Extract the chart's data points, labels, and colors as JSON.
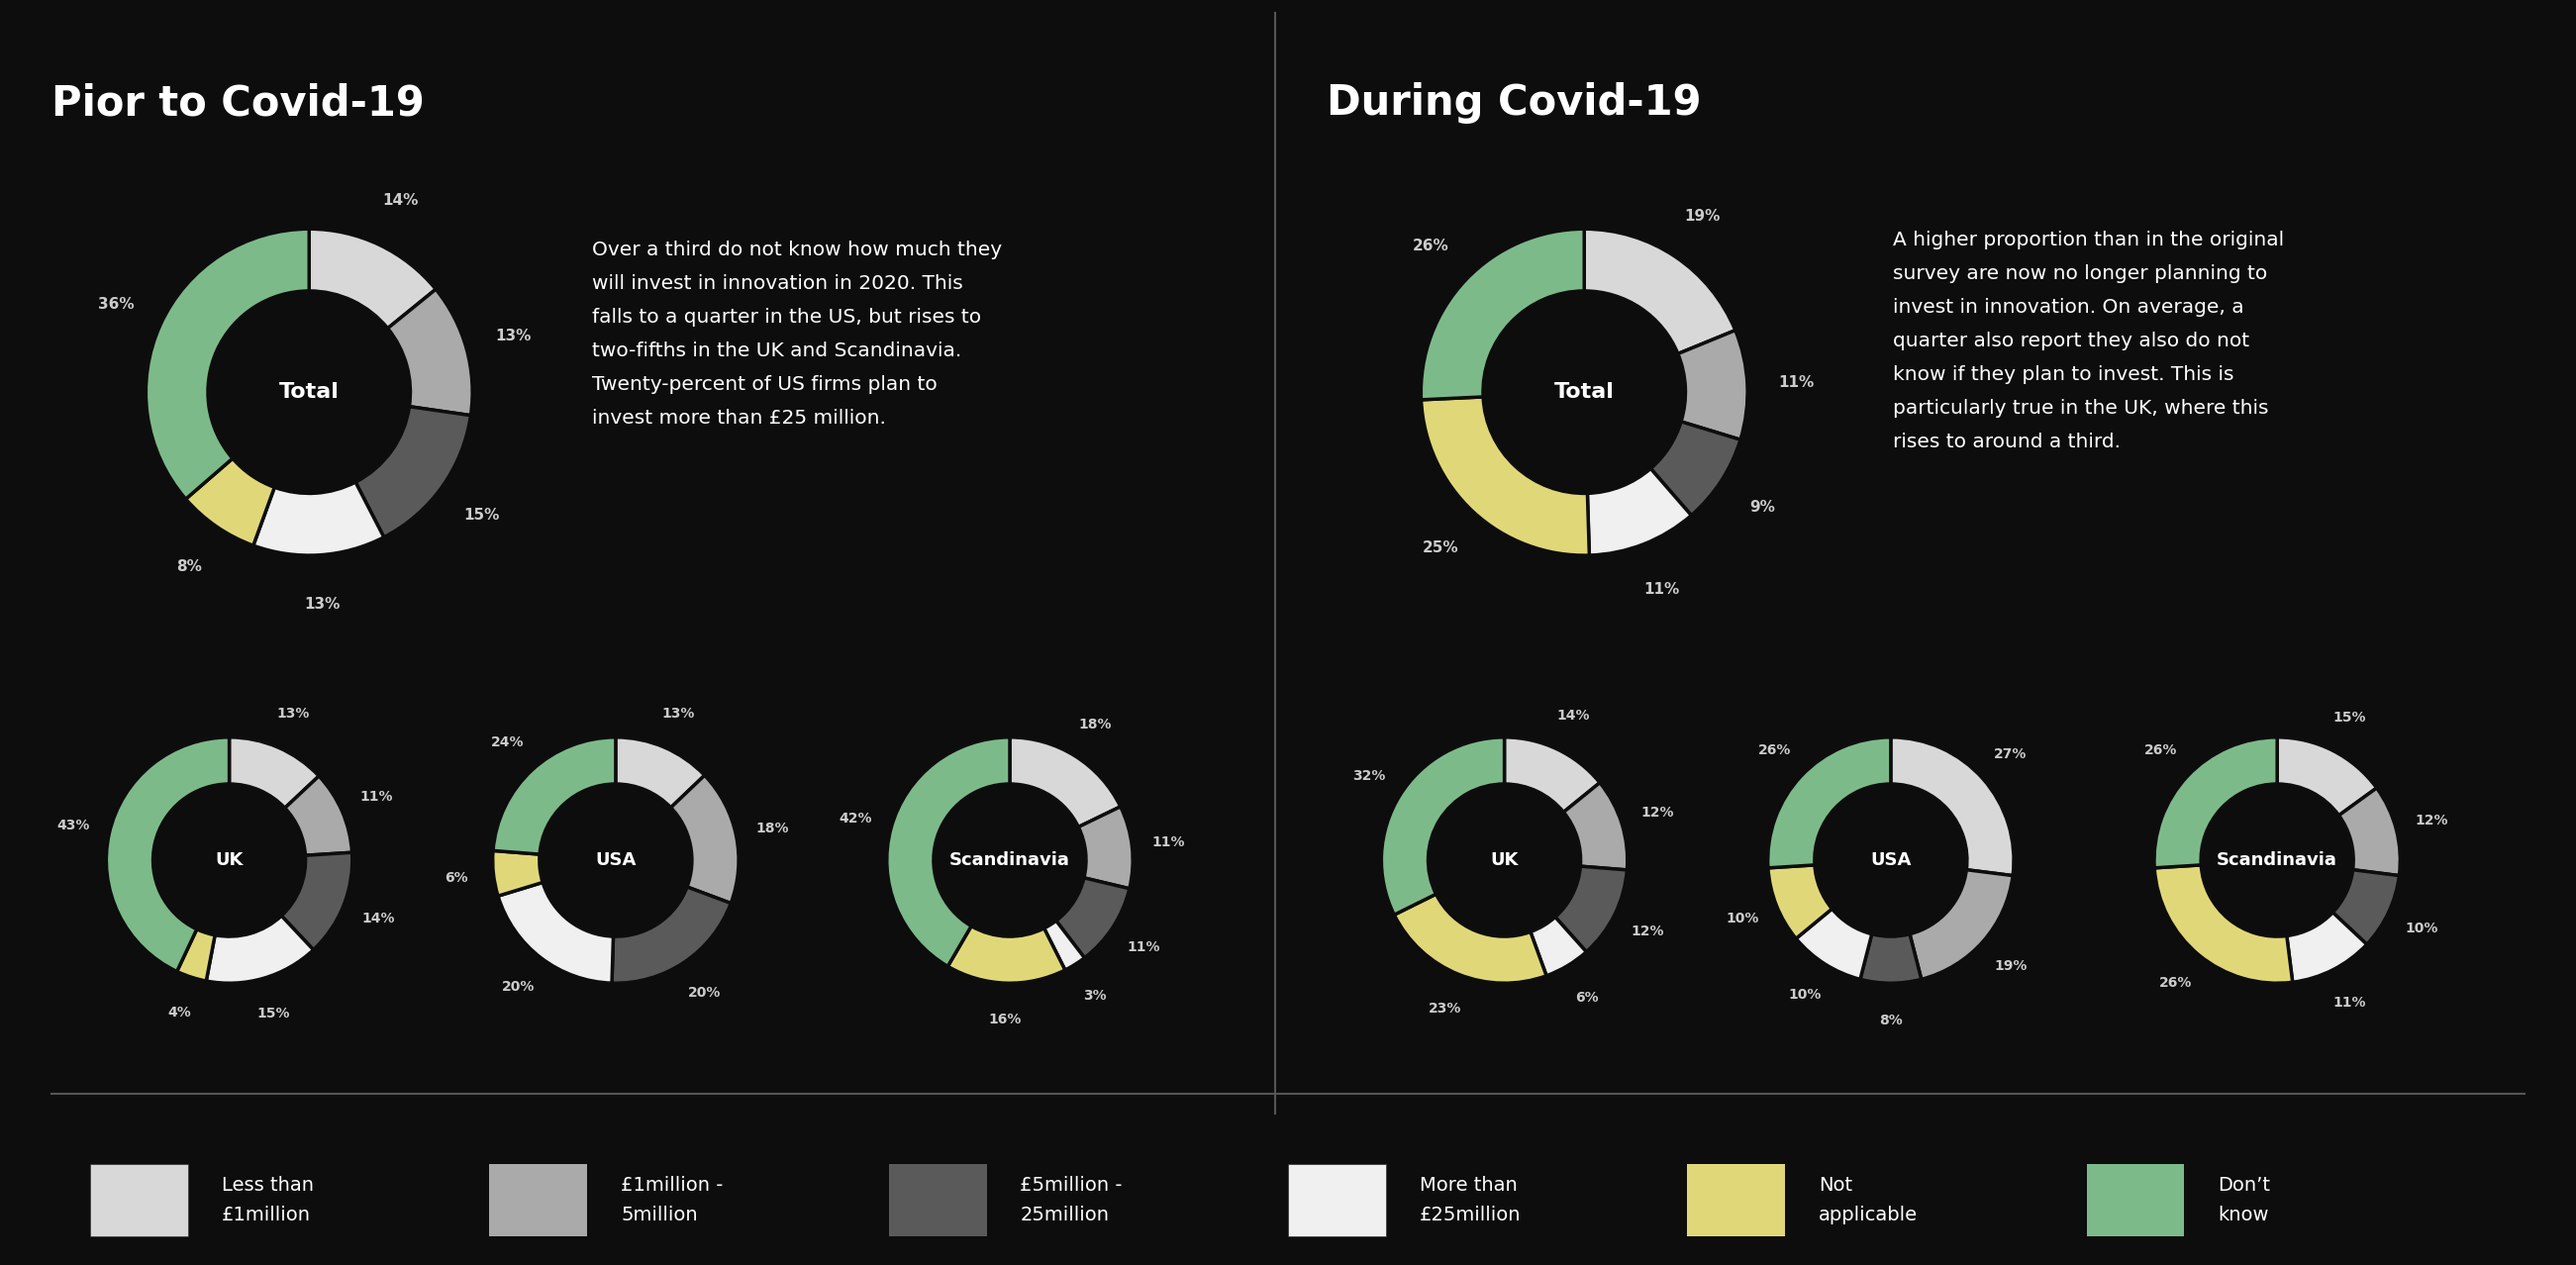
{
  "bg_color": "#0d0d0d",
  "text_color": "#ffffff",
  "label_color": "#cccccc",
  "left_title": "Pior to Covid-19",
  "right_title": "During Covid-19",
  "left_text": "Over a third do not know how much they\nwill invest in innovation in 2020. This\nfalls to a quarter in the US, but rises to\ntwo-fifths in the UK and Scandinavia.\nTwenty-percent of US firms plan to\ninvest more than £25 million.",
  "right_text": "A higher proportion than in the original\nsurvey are now no longer planning to\ninvest in innovation. On average, a\nquarter also report they also do not\nknow if they plan to invest. This is\nparticularly true in the UK, where this\nrises to around a third.",
  "colors": [
    "#d8d8d8",
    "#aaaaaa",
    "#5a5a5a",
    "#f0f0f0",
    "#e0d878",
    "#7dba8a"
  ],
  "prior": {
    "total": {
      "label": "Total",
      "values": [
        14,
        13,
        15,
        13,
        8,
        36
      ]
    },
    "uk": {
      "label": "UK",
      "values": [
        13,
        11,
        14,
        15,
        4,
        43
      ]
    },
    "usa": {
      "label": "USA",
      "values": [
        13,
        18,
        20,
        20,
        6,
        24
      ]
    },
    "scandinavia": {
      "label": "Scandinavia",
      "values": [
        18,
        11,
        11,
        3,
        16,
        42
      ]
    }
  },
  "during": {
    "total": {
      "label": "Total",
      "values": [
        19,
        11,
        9,
        11,
        25,
        26
      ]
    },
    "uk": {
      "label": "UK",
      "values": [
        14,
        12,
        12,
        6,
        23,
        32
      ]
    },
    "usa": {
      "label": "USA",
      "values": [
        27,
        19,
        8,
        10,
        10,
        26
      ]
    },
    "scandinavia": {
      "label": "Scandinavia",
      "values": [
        15,
        12,
        10,
        11,
        26,
        26
      ]
    }
  },
  "legend": [
    {
      "label": "Less than\n£1million",
      "color": "#d8d8d8"
    },
    {
      "label": "£1million -\n5million",
      "color": "#aaaaaa"
    },
    {
      "label": "£5million -\n25million",
      "color": "#5a5a5a"
    },
    {
      "label": "More than\n£25million",
      "color": "#f0f0f0"
    },
    {
      "label": "Not\napplicable",
      "color": "#e0d878"
    },
    {
      "label": "Don’t\nknow",
      "color": "#7dba8a"
    }
  ]
}
